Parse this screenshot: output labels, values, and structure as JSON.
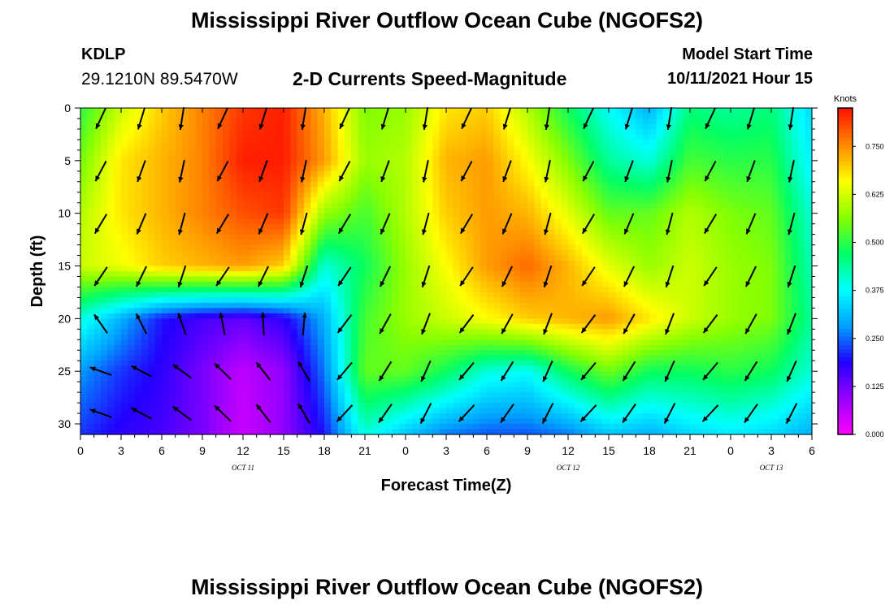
{
  "header": {
    "title": "Mississippi River Outflow Ocean Cube (NGOFS2)",
    "station_id": "KDLP",
    "station_coords": "29.1210N  89.5470W",
    "subtitle": "2-D Currents Speed-Magnitude",
    "model_start_label": "Model Start Time",
    "model_start_value": "10/11/2021 Hour 15"
  },
  "footer": {
    "title": "Mississippi River Outflow Ocean Cube (NGOFS2)"
  },
  "chart_data": {
    "type": "heatmap",
    "title": "2-D Currents Speed-Magnitude",
    "xlabel": "Forecast Time(Z)",
    "ylabel": "Depth (ft)",
    "xlim": [
      0,
      54
    ],
    "ylim": [
      0,
      31
    ],
    "x_ticks": [
      0,
      3,
      6,
      9,
      12,
      15,
      18,
      21,
      24,
      27,
      30,
      33,
      36,
      39,
      42,
      45,
      48,
      51,
      54
    ],
    "x_tick_labels": [
      "0",
      "3",
      "6",
      "9",
      "12",
      "15",
      "18",
      "21",
      "0",
      "3",
      "6",
      "9",
      "12",
      "15",
      "18",
      "21",
      "0",
      "3",
      "6"
    ],
    "y_ticks": [
      0,
      5,
      10,
      15,
      20,
      25,
      30
    ],
    "y_tick_labels": [
      "0",
      "5",
      "10",
      "15",
      "20",
      "25",
      "30"
    ],
    "date_labels": [
      {
        "x": 12,
        "text": "OCT 11"
      },
      {
        "x": 36,
        "text": "OCT 12"
      },
      {
        "x": 51,
        "text": "OCT 13"
      }
    ],
    "colorbar": {
      "unit_label": "Knots",
      "min": 0.0,
      "max": 0.85,
      "ticks": [
        0.0,
        0.125,
        0.25,
        0.375,
        0.5,
        0.625,
        0.75
      ],
      "tick_labels": [
        "0.000",
        "0.125",
        "0.250",
        "0.375",
        "0.500",
        "0.625",
        "0.750"
      ]
    },
    "colors": {
      "scale": [
        "#ff00ff",
        "#9900ff",
        "#2200ff",
        "#00a0ff",
        "#00ffff",
        "#00ff66",
        "#88ff00",
        "#ffff00",
        "#ff8800",
        "#ff1100"
      ]
    },
    "speed_keypoints": [
      {
        "x": 0,
        "depth": [
          0.5,
          0.55,
          0.6,
          0.62,
          0.4,
          0.28,
          0.22
        ]
      },
      {
        "x": 3,
        "depth": [
          0.62,
          0.68,
          0.68,
          0.65,
          0.3,
          0.22,
          0.18
        ]
      },
      {
        "x": 6,
        "depth": [
          0.7,
          0.72,
          0.72,
          0.7,
          0.2,
          0.18,
          0.16
        ]
      },
      {
        "x": 9,
        "depth": [
          0.76,
          0.76,
          0.76,
          0.72,
          0.16,
          0.12,
          0.12
        ]
      },
      {
        "x": 12,
        "depth": [
          0.82,
          0.84,
          0.8,
          0.74,
          0.14,
          0.06,
          0.05
        ]
      },
      {
        "x": 15,
        "depth": [
          0.84,
          0.84,
          0.82,
          0.7,
          0.18,
          0.1,
          0.1
        ]
      },
      {
        "x": 18,
        "depth": [
          0.72,
          0.74,
          0.58,
          0.4,
          0.3,
          0.26,
          0.2
        ]
      },
      {
        "x": 21,
        "depth": [
          0.56,
          0.58,
          0.52,
          0.48,
          0.52,
          0.54,
          0.4
        ]
      },
      {
        "x": 24,
        "depth": [
          0.58,
          0.6,
          0.6,
          0.58,
          0.58,
          0.54,
          0.32
        ]
      },
      {
        "x": 27,
        "depth": [
          0.68,
          0.72,
          0.7,
          0.66,
          0.62,
          0.48,
          0.26
        ]
      },
      {
        "x": 30,
        "depth": [
          0.7,
          0.74,
          0.74,
          0.74,
          0.66,
          0.4,
          0.24
        ]
      },
      {
        "x": 33,
        "depth": [
          0.6,
          0.66,
          0.72,
          0.78,
          0.7,
          0.38,
          0.24
        ]
      },
      {
        "x": 36,
        "depth": [
          0.48,
          0.56,
          0.64,
          0.72,
          0.72,
          0.48,
          0.26
        ]
      },
      {
        "x": 39,
        "depth": [
          0.38,
          0.44,
          0.54,
          0.64,
          0.74,
          0.55,
          0.32
        ]
      },
      {
        "x": 42,
        "depth": [
          0.3,
          0.4,
          0.54,
          0.58,
          0.68,
          0.48,
          0.3
        ]
      },
      {
        "x": 45,
        "depth": [
          0.46,
          0.52,
          0.6,
          0.62,
          0.62,
          0.48,
          0.34
        ]
      },
      {
        "x": 48,
        "depth": [
          0.44,
          0.5,
          0.56,
          0.58,
          0.58,
          0.5,
          0.36
        ]
      },
      {
        "x": 51,
        "depth": [
          0.46,
          0.5,
          0.54,
          0.56,
          0.56,
          0.48,
          0.34
        ]
      },
      {
        "x": 54,
        "depth": [
          0.34,
          0.36,
          0.4,
          0.42,
          0.44,
          0.4,
          0.3
        ]
      }
    ],
    "depth_keypoints": [
      0,
      5,
      10,
      15,
      20,
      25,
      31
    ]
  }
}
